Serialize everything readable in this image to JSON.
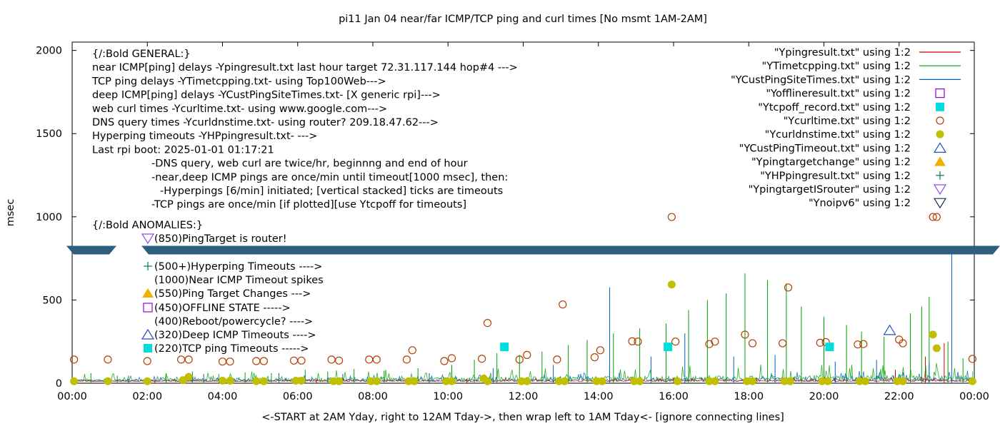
{
  "chart_data": {
    "type": "line",
    "title": "pi11 Jan 04  near/far ICMP/TCP ping and curl times [No msmt 1AM-2AM]",
    "xlabel": "<-START at 2AM Yday, right to 12AM Tday->, then wrap left to 1AM Tday<- [ignore connecting lines]",
    "ylabel": "msec",
    "xlim": [
      0,
      24
    ],
    "ylim": [
      0,
      2050
    ],
    "x_ticks": [
      "00:00",
      "02:00",
      "04:00",
      "06:00",
      "08:00",
      "10:00",
      "12:00",
      "14:00",
      "16:00",
      "18:00",
      "20:00",
      "22:00",
      "00:00"
    ],
    "y_ticks": [
      "0",
      "500",
      "1000",
      "1500",
      "2000"
    ],
    "grid": false,
    "legend_position": "top-right",
    "axis_break_y": 800,
    "legend": [
      {
        "label": "\"Ypingresult.txt\" using 1:2",
        "marker": "line",
        "color": "#cc0000"
      },
      {
        "label": "\"YTimetcpping.txt\" using 1:2",
        "marker": "line",
        "color": "#00a000"
      },
      {
        "label": "\"YCustPingSiteTimes.txt\" using 1:2",
        "marker": "line",
        "color": "#0060c0"
      },
      {
        "label": "\"Yofflineresult.txt\" using 1:2",
        "marker": "square-open",
        "color": "#9400d3"
      },
      {
        "label": "\"Ytcpoff_record.txt\" using 1:2",
        "marker": "square-filled",
        "color": "#00dddd"
      },
      {
        "label": "\"Ycurltime.txt\" using 1:2",
        "marker": "circle-open",
        "color": "#b04000"
      },
      {
        "label": "\"Ycurldnstime.txt\" using 1:2",
        "marker": "circle-filled",
        "color": "#c0c000"
      },
      {
        "label": "\"YCustPingTimeout.txt\" using 1:2",
        "marker": "triangle-up-open",
        "color": "#2050c0"
      },
      {
        "label": "\"Ypingtargetchange\" using 1:2",
        "marker": "triangle-up-filled",
        "color": "#f0b000"
      },
      {
        "label": "\"YHPpingresult.txt\" using 1:2",
        "marker": "plus",
        "color": "#008040"
      },
      {
        "label": "\"YpingtargetISrouter\" using 1:2",
        "marker": "triangle-down-open",
        "color": "#9050e0"
      },
      {
        "label": "\"Ynoipv6\" using 1:2",
        "marker": "triangle-down-open",
        "color": "#103050"
      }
    ],
    "notes_general": [
      "{/:Bold GENERAL:}",
      "near ICMP[ping] delays -Ypingresult.txt last hour target 72.31.117.144 hop#4 --->",
      "TCP ping delays -YTimetcpping.txt- using Top100Web--->",
      "deep ICMP[ping] delays -YCustPingSiteTimes.txt- [X generic rpi]--->",
      "web curl times -Ycurltime.txt- using www.google.com--->",
      "DNS query times -Ycurldnstime.txt- using router? 209.18.47.62--->",
      "Hyperping timeouts -YHPpingresult.txt- --->",
      "Last rpi boot: 2025-01-01 01:17:21",
      "-DNS query, web curl are twice/hr, beginnng and end of hour",
      "-near,deep ICMP pings are once/min until timeout[1000 msec], then:",
      "-Hyperpings [6/min] initiated; [vertical stacked] ticks are timeouts",
      "-TCP pings are once/min [if plotted][use Ytcpoff for timeouts]"
    ],
    "notes_anomalies_title": "{/:Bold ANOMALIES:}",
    "notes_anomalies": [
      {
        "text": "(850)PingTarget is router!",
        "marker": "triangle-down-open",
        "color": "#9050e0"
      },
      {
        "text": "(500+)Hyperping Timeouts ---->",
        "marker": "plus",
        "color": "#008040"
      },
      {
        "text": "(1000)Near ICMP Timeout spikes",
        "marker": "none",
        "color": "#000000"
      },
      {
        "text": "(550)Ping Target Changes --->",
        "marker": "triangle-up-filled",
        "color": "#f0b000"
      },
      {
        "text": "(450)OFFLINE STATE ----->",
        "marker": "square-open",
        "color": "#9400d3"
      },
      {
        "text": "(400)Reboot/powercycle? ---->",
        "marker": "none",
        "color": "#000000"
      },
      {
        "text": "(320)Deep ICMP Timeouts ---->",
        "marker": "triangle-up-open",
        "color": "#2050c0"
      },
      {
        "text": "(220)TCP ping Timeouts ----->",
        "marker": "square-filled",
        "color": "#00dddd"
      }
    ],
    "series": [
      {
        "name": "\"Ycurltime.txt\" using 1:2",
        "marker": "circle-open",
        "color": "#b04000",
        "points": [
          [
            0.05,
            142
          ],
          [
            0.95,
            142
          ],
          [
            2.0,
            133
          ],
          [
            2.9,
            142
          ],
          [
            3.1,
            142
          ],
          [
            4.0,
            130
          ],
          [
            4.2,
            130
          ],
          [
            4.9,
            133
          ],
          [
            5.1,
            133
          ],
          [
            5.9,
            136
          ],
          [
            6.1,
            136
          ],
          [
            6.9,
            142
          ],
          [
            7.1,
            136
          ],
          [
            7.9,
            142
          ],
          [
            8.1,
            142
          ],
          [
            8.9,
            142
          ],
          [
            9.05,
            198
          ],
          [
            9.9,
            133
          ],
          [
            10.1,
            150
          ],
          [
            10.9,
            147
          ],
          [
            11.05,
            362
          ],
          [
            11.9,
            142
          ],
          [
            12.1,
            170
          ],
          [
            12.9,
            142
          ],
          [
            13.05,
            473
          ],
          [
            13.9,
            156
          ],
          [
            14.05,
            198
          ],
          [
            14.9,
            252
          ],
          [
            15.05,
            250
          ],
          [
            15.95,
            999
          ],
          [
            16.05,
            250
          ],
          [
            16.95,
            235
          ],
          [
            17.1,
            250
          ],
          [
            17.9,
            292
          ],
          [
            18.1,
            240
          ],
          [
            18.9,
            240
          ],
          [
            19.05,
            575
          ],
          [
            19.9,
            243
          ],
          [
            20.05,
            247
          ],
          [
            20.9,
            233
          ],
          [
            21.05,
            235
          ],
          [
            22.0,
            262
          ],
          [
            22.1,
            240
          ],
          [
            22.9,
            999
          ],
          [
            23.0,
            999
          ],
          [
            23.95,
            146
          ]
        ]
      },
      {
        "name": "\"Ycurldnstime.txt\" using 1:2",
        "marker": "circle-filled",
        "color": "#c0c000",
        "points": [
          [
            0.05,
            12
          ],
          [
            0.95,
            12
          ],
          [
            2.0,
            12
          ],
          [
            2.95,
            18
          ],
          [
            3.1,
            38
          ],
          [
            4.0,
            15
          ],
          [
            4.2,
            15
          ],
          [
            4.9,
            12
          ],
          [
            5.1,
            12
          ],
          [
            5.95,
            15
          ],
          [
            6.1,
            15
          ],
          [
            6.95,
            12
          ],
          [
            7.1,
            12
          ],
          [
            7.95,
            12
          ],
          [
            8.1,
            12
          ],
          [
            8.95,
            12
          ],
          [
            9.1,
            12
          ],
          [
            9.95,
            12
          ],
          [
            10.1,
            12
          ],
          [
            10.95,
            28
          ],
          [
            11.05,
            12
          ],
          [
            11.95,
            12
          ],
          [
            12.1,
            12
          ],
          [
            12.95,
            12
          ],
          [
            13.1,
            12
          ],
          [
            13.95,
            12
          ],
          [
            14.1,
            12
          ],
          [
            14.95,
            12
          ],
          [
            15.1,
            12
          ],
          [
            15.95,
            593
          ],
          [
            16.1,
            12
          ],
          [
            16.95,
            12
          ],
          [
            17.1,
            12
          ],
          [
            17.95,
            12
          ],
          [
            18.1,
            12
          ],
          [
            18.95,
            12
          ],
          [
            19.1,
            12
          ],
          [
            19.95,
            12
          ],
          [
            20.1,
            12
          ],
          [
            20.95,
            12
          ],
          [
            21.1,
            12
          ],
          [
            21.95,
            12
          ],
          [
            22.1,
            12
          ],
          [
            22.9,
            292
          ],
          [
            23.0,
            210
          ],
          [
            23.95,
            12
          ]
        ]
      },
      {
        "name": "\"Ytcpoff_record.txt\" using 1:2",
        "marker": "square-filled",
        "color": "#00dddd",
        "points": [
          [
            11.5,
            218
          ],
          [
            15.85,
            218
          ],
          [
            20.15,
            218
          ]
        ]
      },
      {
        "name": "\"YCustPingTimeout.txt\" using 1:2",
        "marker": "triangle-up-open",
        "color": "#2050c0",
        "points": [
          [
            21.75,
            318
          ]
        ]
      }
    ],
    "spikes": [
      {
        "name": "\"YTimetcpping.txt\" using 1:2",
        "color": "#00a000",
        "points": [
          [
            0.5,
            60
          ],
          [
            1.2,
            45
          ],
          [
            2.5,
            60
          ],
          [
            3.2,
            70
          ],
          [
            3.9,
            55
          ],
          [
            4.6,
            65
          ],
          [
            5.3,
            60
          ],
          [
            6.2,
            80
          ],
          [
            6.8,
            70
          ],
          [
            7.5,
            85
          ],
          [
            8.3,
            75
          ],
          [
            9.2,
            90
          ],
          [
            10.1,
            110
          ],
          [
            10.7,
            140
          ],
          [
            11.3,
            180
          ],
          [
            11.9,
            170
          ],
          [
            12.5,
            190
          ],
          [
            13.2,
            230
          ],
          [
            13.7,
            260
          ],
          [
            14.4,
            300
          ],
          [
            15.1,
            330
          ],
          [
            15.8,
            360
          ],
          [
            16.4,
            440
          ],
          [
            16.9,
            500
          ],
          [
            17.4,
            540
          ],
          [
            17.9,
            660
          ],
          [
            18.5,
            620
          ],
          [
            19.0,
            600
          ],
          [
            19.4,
            460
          ],
          [
            20.0,
            400
          ],
          [
            20.6,
            350
          ],
          [
            21.0,
            310
          ],
          [
            21.6,
            280
          ],
          [
            22.3,
            420
          ],
          [
            22.6,
            460
          ],
          [
            22.8,
            520
          ],
          [
            23.3,
            250
          ],
          [
            23.7,
            150
          ]
        ]
      },
      {
        "name": "\"YCustPingSiteTimes.txt\" using 1:2",
        "color": "#0060c0",
        "points": [
          [
            1.5,
            45
          ],
          [
            3.5,
            55
          ],
          [
            5.5,
            60
          ],
          [
            7.2,
            55
          ],
          [
            9.5,
            60
          ],
          [
            11.2,
            90
          ],
          [
            12.8,
            110
          ],
          [
            14.3,
            575
          ],
          [
            15.4,
            160
          ],
          [
            16.3,
            300
          ],
          [
            17.6,
            160
          ],
          [
            18.7,
            170
          ],
          [
            20.3,
            130
          ],
          [
            21.4,
            140
          ],
          [
            22.8,
            120
          ],
          [
            23.4,
            820
          ]
        ]
      },
      {
        "name": "\"Ypingresult.txt\" using 1:2",
        "color": "#cc0000",
        "points": [
          [
            2.2,
            20
          ],
          [
            6.5,
            22
          ],
          [
            10.5,
            25
          ],
          [
            14.0,
            30
          ],
          [
            18.2,
            35
          ],
          [
            21.9,
            80
          ],
          [
            22.7,
            160
          ],
          [
            23.2,
            240
          ]
        ]
      }
    ]
  }
}
